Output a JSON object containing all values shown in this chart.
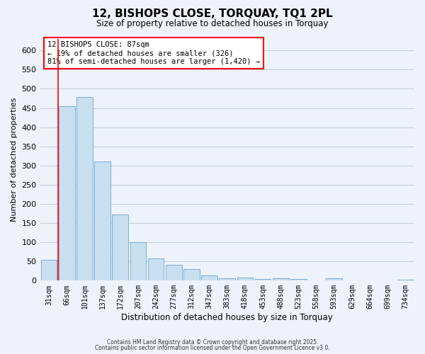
{
  "title": "12, BISHOPS CLOSE, TORQUAY, TQ1 2PL",
  "subtitle": "Size of property relative to detached houses in Torquay",
  "xlabel": "Distribution of detached houses by size in Torquay",
  "ylabel": "Number of detached properties",
  "bar_labels": [
    "31sqm",
    "66sqm",
    "101sqm",
    "137sqm",
    "172sqm",
    "207sqm",
    "242sqm",
    "277sqm",
    "312sqm",
    "347sqm",
    "383sqm",
    "418sqm",
    "453sqm",
    "488sqm",
    "523sqm",
    "558sqm",
    "593sqm",
    "629sqm",
    "664sqm",
    "699sqm",
    "734sqm"
  ],
  "bar_values": [
    55,
    455,
    478,
    311,
    172,
    100,
    58,
    42,
    30,
    14,
    7,
    8,
    5,
    7,
    5,
    1,
    6,
    1,
    1,
    1,
    3
  ],
  "bar_color": "#c8dff0",
  "bar_edgecolor": "#7ab0d4",
  "ylim": [
    0,
    630
  ],
  "yticks": [
    0,
    50,
    100,
    150,
    200,
    250,
    300,
    350,
    400,
    450,
    500,
    550,
    600
  ],
  "property_line_x": 0.5,
  "annotation_title": "12 BISHOPS CLOSE: 87sqm",
  "annotation_line1": "← 19% of detached houses are smaller (326)",
  "annotation_line2": "81% of semi-detached houses are larger (1,420) →",
  "footer1": "Contains HM Land Registry data © Crown copyright and database right 2025.",
  "footer2": "Contains public sector information licensed under the Open Government Licence v3.0.",
  "bg_color": "#eef2fa",
  "grid_color": "#c8d0e0"
}
